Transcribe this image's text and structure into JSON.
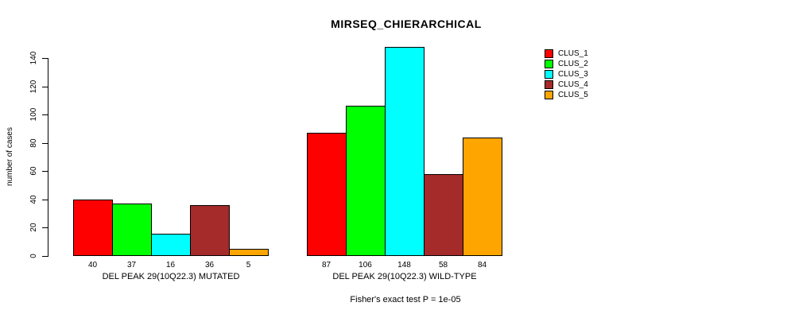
{
  "chart_data": {
    "type": "bar",
    "title": "MIRSEQ_CHIERARCHICAL",
    "ylabel": "number of cases",
    "xlabel": "",
    "annotation": "Fisher's exact test P = 1e-05",
    "categories": [
      "DEL PEAK 29(10Q22.3) MUTATED",
      "DEL PEAK 29(10Q22.3) WILD-TYPE"
    ],
    "groups": [
      {
        "label": "DEL PEAK 29(10Q22.3) MUTATED",
        "values": [
          40,
          37,
          16,
          36,
          5
        ]
      },
      {
        "label": "DEL PEAK 29(10Q22.3) WILD-TYPE",
        "values": [
          87,
          106,
          148,
          58,
          84
        ]
      }
    ],
    "series": [
      {
        "name": "CLUS_1",
        "color": "#FF0000",
        "values": [
          40,
          87
        ]
      },
      {
        "name": "CLUS_2",
        "color": "#00FF00",
        "values": [
          37,
          106
        ]
      },
      {
        "name": "CLUS_3",
        "color": "#00FFFF",
        "values": [
          16,
          148
        ]
      },
      {
        "name": "CLUS_4",
        "color": "#A52A2A",
        "values": [
          36,
          58
        ]
      },
      {
        "name": "CLUS_5",
        "color": "#FFA500",
        "values": [
          5,
          84
        ]
      }
    ],
    "yticks": [
      0,
      20,
      40,
      60,
      80,
      100,
      120,
      140
    ],
    "ylim": [
      0,
      148
    ],
    "grid": false,
    "legend_position": "topright",
    "bar_value_labels_shown": true,
    "axis_color": "#000000",
    "background_color": "#FFFFFF"
  }
}
